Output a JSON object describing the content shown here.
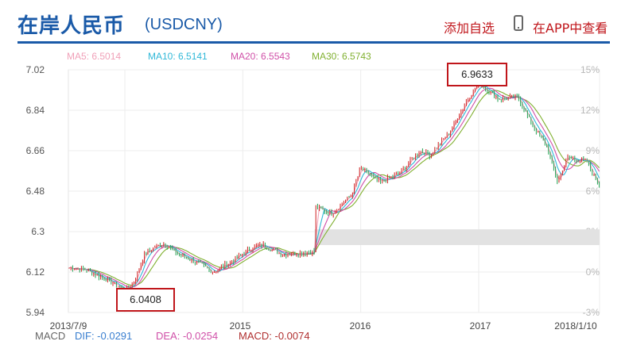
{
  "header": {
    "title_cn": "在岸人民币",
    "title_code": "(USDCNY)",
    "watch_label": "添加自选",
    "app_label": "在APP中查看"
  },
  "ma": {
    "ma5": "MA5: 6.5014",
    "ma10": "MA10: 6.5141",
    "ma20": "MA20: 6.5543",
    "ma30": "MA30: 6.5743"
  },
  "macd": {
    "label": "MACD",
    "dif": "DIF: -0.0291",
    "dea": "DEA: -0.0254",
    "macd": "MACD: -0.0074"
  },
  "annotations": {
    "high": "6.9633",
    "low": "6.0408"
  },
  "colors": {
    "brand": "#1a5aa8",
    "accent_red": "#c0161b",
    "ma5": "#f0a0b8",
    "ma10": "#2fb8d8",
    "ma20": "#d050a8",
    "ma30": "#80b030",
    "up": "#d02020",
    "down": "#20a050",
    "band": "#e2e2e2"
  },
  "chart_data": {
    "type": "line",
    "title": "",
    "x_ticks": [
      "2013/7/9",
      "2015",
      "2016",
      "2017",
      "2018/1/10"
    ],
    "y_ticks_left": [
      7.02,
      6.84,
      6.66,
      6.48,
      6.3,
      6.12,
      5.94
    ],
    "y_ticks_right": [
      "15%",
      "12%",
      "9%",
      "6%",
      "3%",
      "0%",
      "-3%"
    ],
    "ylim": [
      5.94,
      7.02
    ],
    "reference_band": [
      6.24,
      6.31
    ],
    "grid": true,
    "series": [
      {
        "name": "USDCNY",
        "x": [
          "2013/7/9",
          "2013/9",
          "2013/11",
          "2014/1",
          "2014/2",
          "2014/3",
          "2014/4",
          "2014/5",
          "2014/6",
          "2014/8",
          "2014/10",
          "2014/12",
          "2015/2",
          "2015/3",
          "2015/5",
          "2015/8/10",
          "2015/8/11",
          "2015/8/13",
          "2015/10",
          "2015/12",
          "2016/1",
          "2016/3",
          "2016/5",
          "2016/7",
          "2016/8",
          "2016/10",
          "2016/12",
          "2017/1/3",
          "2017/3",
          "2017/5",
          "2017/6",
          "2017/8",
          "2017/9",
          "2017/10",
          "2017/11",
          "2017/12",
          "2018/1/10"
        ],
        "values": [
          6.14,
          6.13,
          6.09,
          6.04,
          6.08,
          6.2,
          6.23,
          6.25,
          6.21,
          6.17,
          6.12,
          6.17,
          6.23,
          6.24,
          6.2,
          6.21,
          6.33,
          6.41,
          6.38,
          6.46,
          6.58,
          6.52,
          6.56,
          6.66,
          6.64,
          6.74,
          6.9,
          6.96,
          6.89,
          6.9,
          6.81,
          6.67,
          6.52,
          6.63,
          6.62,
          6.61,
          6.5
        ]
      }
    ]
  }
}
